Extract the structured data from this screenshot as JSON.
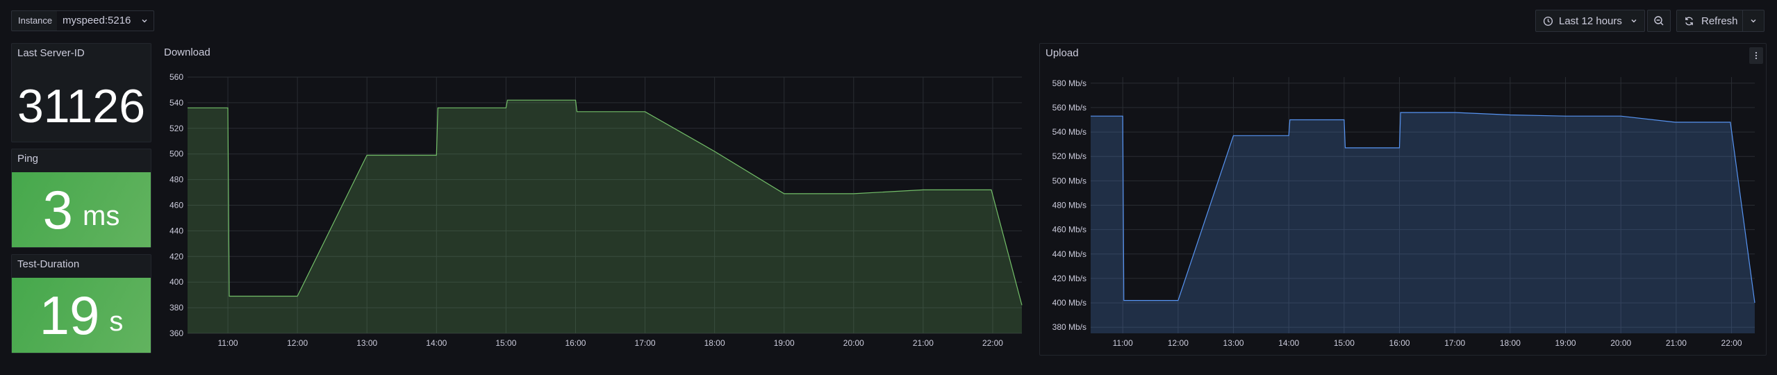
{
  "variables": {
    "instance_label": "Instance",
    "instance_value": "myspeed:5216"
  },
  "toolbar": {
    "time_range": "Last 12 hours",
    "refresh_label": "Refresh"
  },
  "panels": {
    "server_id": {
      "title": "Last Server-ID",
      "value": "31126"
    },
    "ping": {
      "title": "Ping",
      "value": "3",
      "unit": "ms",
      "color": "#56a64b"
    },
    "duration": {
      "title": "Test-Duration",
      "value": "19",
      "unit": "s",
      "color": "#56a64b"
    },
    "download": {
      "title": "Download"
    },
    "upload": {
      "title": "Upload"
    }
  },
  "chart_data": [
    {
      "type": "area",
      "title": "Download",
      "ylim": [
        360,
        560
      ],
      "yticks": [
        "360",
        "380",
        "400",
        "420",
        "440",
        "460",
        "480",
        "500",
        "520",
        "540",
        "560"
      ],
      "xticks": [
        "11:00",
        "12:00",
        "13:00",
        "14:00",
        "15:00",
        "16:00",
        "17:00",
        "18:00",
        "19:00",
        "20:00",
        "21:00",
        "22:00"
      ],
      "xlim": [
        10.42,
        22.42
      ],
      "color": "#73bf69",
      "grid": true,
      "x": [
        10.42,
        11.0,
        11.02,
        12.0,
        13.0,
        14.0,
        14.02,
        15.0,
        15.02,
        16.0,
        16.02,
        17.0,
        18.0,
        19.0,
        20.0,
        21.0,
        21.98,
        22.42
      ],
      "values": [
        536,
        536,
        389,
        389,
        499,
        499,
        536,
        536,
        542,
        542,
        533,
        533,
        502,
        469,
        469,
        472,
        472,
        382
      ]
    },
    {
      "type": "area",
      "title": "Upload",
      "ylim": [
        375,
        585
      ],
      "yticks": [
        "380 Mb/s",
        "400 Mb/s",
        "420 Mb/s",
        "440 Mb/s",
        "460 Mb/s",
        "480 Mb/s",
        "500 Mb/s",
        "520 Mb/s",
        "540 Mb/s",
        "560 Mb/s",
        "580 Mb/s"
      ],
      "xticks": [
        "11:00",
        "12:00",
        "13:00",
        "14:00",
        "15:00",
        "16:00",
        "17:00",
        "18:00",
        "19:00",
        "20:00",
        "21:00",
        "22:00"
      ],
      "xlim": [
        10.42,
        22.42
      ],
      "color": "#5794f2",
      "grid": true,
      "x": [
        10.42,
        11.0,
        11.02,
        12.0,
        13.0,
        14.0,
        14.02,
        15.0,
        15.02,
        16.0,
        16.02,
        17.0,
        18.0,
        19.0,
        20.0,
        20.98,
        21.98,
        22.42
      ],
      "values": [
        553,
        553,
        402,
        402,
        537,
        537,
        550,
        550,
        527,
        527,
        556,
        556,
        554,
        553,
        553,
        548,
        548,
        400
      ]
    }
  ]
}
